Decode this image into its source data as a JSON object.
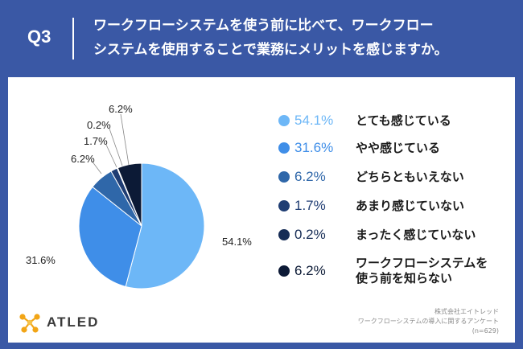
{
  "header": {
    "q_label": "Q3",
    "question_line1": "ワークフローシステムを使う前に比べて、ワークフロー",
    "question_line2": "システムを使用することで業務にメリットを感じますか。"
  },
  "chart_data": {
    "type": "pie",
    "title": "",
    "slices": [
      {
        "label": "とても感じている",
        "value": 54.1,
        "pct_text": "54.1%",
        "color": "#6db7f7"
      },
      {
        "label": "やや感じている",
        "value": 31.6,
        "pct_text": "31.6%",
        "color": "#3f8ee8"
      },
      {
        "label": "どちらともいえない",
        "value": 6.2,
        "pct_text": "6.2%",
        "color": "#2f67a9"
      },
      {
        "label": "あまり感じていない",
        "value": 1.7,
        "pct_text": "1.7%",
        "color": "#1f3d73"
      },
      {
        "label": "まったく感じていない",
        "value": 0.2,
        "pct_text": "0.2%",
        "color": "#162c55"
      },
      {
        "label": "ワークフローシステムを使う前を知らない",
        "label_lines": [
          "ワークフローシステムを",
          "使う前を知らない"
        ],
        "value": 6.2,
        "pct_text": "6.2%",
        "color": "#0c1a36"
      }
    ],
    "start": "12 o'clock",
    "direction": "clockwise",
    "legend_position": "right"
  },
  "logo": {
    "text": "ATLED",
    "icon": "atled-logo-icon"
  },
  "source": {
    "line1": "株式会社エイトレッド",
    "line2": "ワークフローシステムの導入に関するアンケート",
    "line3": "(n=629)"
  },
  "colors": {
    "header_bg": "#3a58a5",
    "panel_bg": "#ffffff",
    "logo_accent": "#f2a516"
  }
}
